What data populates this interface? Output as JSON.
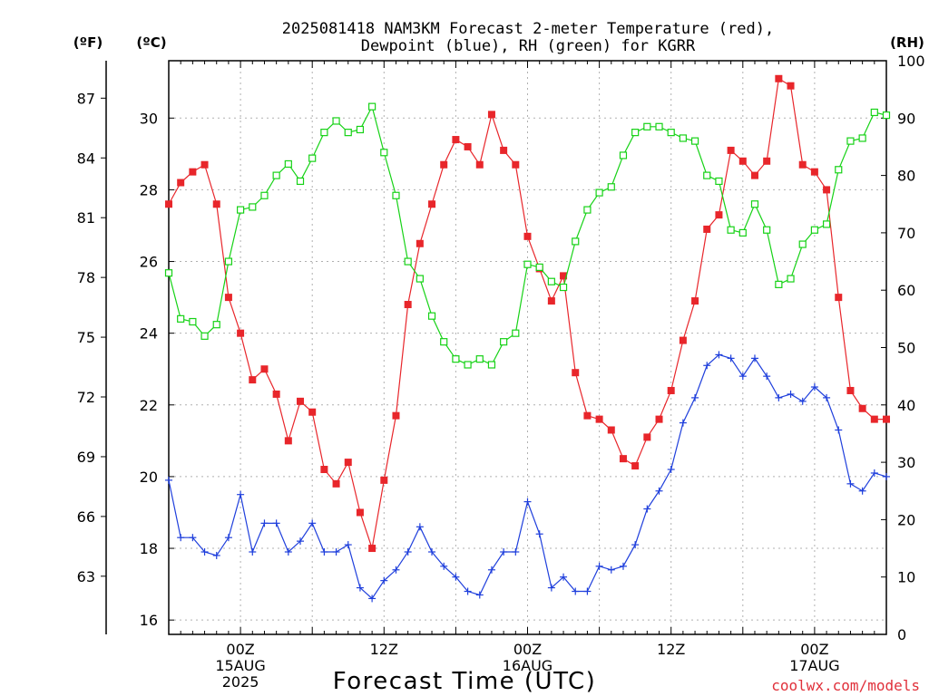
{
  "title": "2025081418 NAM3KM Forecast 2-meter Temperature (red),\nDewpoint (blue), RH (green) for KGRR",
  "axis_labels": {
    "fahrenheit": "(ºF)",
    "celsius": "(ºC)",
    "rh": "(RH)",
    "x": "Forecast Time (UTC)"
  },
  "watermark": "coolwx.com/models",
  "ticks": {
    "celsius": [
      "16",
      "18",
      "20",
      "22",
      "24",
      "26",
      "28",
      "30"
    ],
    "fahrenheit": [
      "63",
      "66",
      "69",
      "72",
      "75",
      "78",
      "81",
      "84",
      "87"
    ],
    "rh": [
      "0",
      "10",
      "20",
      "30",
      "40",
      "50",
      "60",
      "70",
      "80",
      "90",
      "100"
    ],
    "x": [
      {
        "hour": 6,
        "lines": [
          "00Z",
          "15AUG",
          "2025"
        ]
      },
      {
        "hour": 18,
        "lines": [
          "12Z"
        ]
      },
      {
        "hour": 30,
        "lines": [
          "00Z",
          "16AUG"
        ]
      },
      {
        "hour": 42,
        "lines": [
          "12Z"
        ]
      },
      {
        "hour": 54,
        "lines": [
          "00Z",
          "17AUG"
        ]
      }
    ]
  },
  "colors": {
    "temperature": "#e8262b",
    "dewpoint": "#1f3fdc",
    "rh": "#16d216",
    "grid": "#b0b0b0"
  },
  "chart_data": {
    "type": "line",
    "x_label": "Forecast Time (UTC)",
    "x_units": "hours from 2025-08-14 18Z",
    "x": [
      0,
      1,
      2,
      3,
      4,
      5,
      6,
      7,
      8,
      9,
      10,
      11,
      12,
      13,
      14,
      15,
      16,
      17,
      18,
      19,
      20,
      21,
      22,
      23,
      24,
      25,
      26,
      27,
      28,
      29,
      30,
      31,
      32,
      33,
      34,
      35,
      36,
      37,
      38,
      39,
      40,
      41,
      42,
      43,
      44,
      45,
      46,
      47,
      48,
      49,
      50,
      51,
      52,
      53,
      54,
      55,
      56,
      57,
      58,
      59,
      60
    ],
    "xlim": [
      0,
      60
    ],
    "ylim_celsius": [
      15.6,
      31.6
    ],
    "ylim_rh": [
      0,
      100
    ],
    "series": [
      {
        "name": "2-meter Temperature (red)",
        "axis": "celsius",
        "marker": "filled-square",
        "values": [
          27.6,
          28.2,
          28.5,
          28.7,
          27.6,
          25.0,
          24.0,
          22.7,
          23.0,
          22.3,
          21.0,
          22.1,
          21.8,
          20.2,
          19.8,
          20.4,
          19.0,
          18.0,
          19.9,
          21.7,
          24.8,
          26.5,
          27.6,
          28.7,
          29.4,
          29.2,
          28.7,
          30.1,
          29.1,
          28.7,
          26.7,
          25.8,
          24.9,
          25.6,
          22.9,
          21.7,
          21.6,
          21.3,
          20.5,
          20.3,
          21.1,
          21.6,
          22.4,
          23.8,
          24.9,
          26.9,
          27.3,
          29.1,
          28.8,
          28.4,
          28.8,
          31.1,
          30.9,
          28.7,
          28.5,
          28.0,
          25.0,
          22.4,
          21.9,
          21.6,
          21.6
        ]
      },
      {
        "name": "Dewpoint (blue)",
        "axis": "celsius",
        "marker": "plus",
        "values": [
          19.9,
          18.3,
          18.3,
          17.9,
          17.8,
          18.3,
          19.5,
          17.9,
          18.7,
          18.7,
          17.9,
          18.2,
          18.7,
          17.9,
          17.9,
          18.1,
          16.9,
          16.6,
          17.1,
          17.4,
          17.9,
          18.6,
          17.9,
          17.5,
          17.2,
          16.8,
          16.7,
          17.4,
          17.9,
          17.9,
          19.3,
          18.4,
          16.9,
          17.2,
          16.8,
          16.8,
          17.5,
          17.4,
          17.5,
          18.1,
          19.1,
          19.6,
          20.2,
          21.5,
          22.2,
          23.1,
          23.4,
          23.3,
          22.8,
          23.3,
          22.8,
          22.2,
          22.3,
          22.1,
          22.5,
          22.2,
          21.3,
          19.8,
          19.6,
          20.1,
          20.0
        ]
      },
      {
        "name": "RH (green)",
        "axis": "rh",
        "marker": "open-square",
        "values": [
          63,
          55,
          54.5,
          52,
          54,
          65,
          74,
          74.5,
          76.5,
          80,
          82,
          79,
          83,
          87.5,
          89.5,
          87.5,
          88,
          92,
          84,
          76.5,
          65,
          62,
          55.5,
          51,
          48,
          47,
          48,
          47,
          51,
          52.5,
          64.5,
          64,
          61.5,
          60.5,
          68.5,
          74,
          77,
          78,
          83.5,
          87.5,
          88.5,
          88.5,
          87.5,
          86.5,
          86,
          80,
          79,
          70.5,
          70,
          75,
          70.5,
          61,
          62,
          68,
          70.5,
          71.5,
          81,
          86,
          86.5,
          91,
          90.5
        ]
      }
    ]
  }
}
